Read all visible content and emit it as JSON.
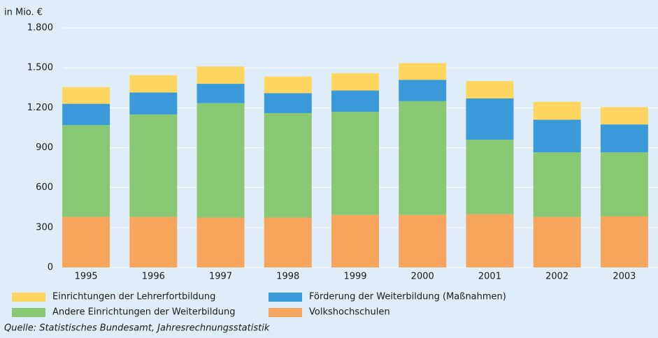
{
  "chart_data": {
    "type": "stacked_bar",
    "y_axis_label": "in Mio. €",
    "categories": [
      "1995",
      "1996",
      "1997",
      "1998",
      "1999",
      "2000",
      "2001",
      "2002",
      "2003"
    ],
    "series": [
      {
        "name": "Volkshochschulen",
        "color": "#f6a55c",
        "values": [
          380,
          380,
          375,
          375,
          395,
          395,
          400,
          380,
          385
        ]
      },
      {
        "name": "Andere Einrichtungen der Weiterbildung",
        "color": "#88c873",
        "values": [
          690,
          770,
          860,
          785,
          775,
          855,
          560,
          485,
          480
        ]
      },
      {
        "name": "Förderung der Weiterbildung (Maßnahmen)",
        "color": "#3a9ad9",
        "values": [
          160,
          165,
          145,
          150,
          160,
          160,
          310,
          245,
          210
        ]
      },
      {
        "name": "Einrichtungen der Lehrerfortbildung",
        "color": "#fdd55f",
        "values": [
          125,
          130,
          130,
          125,
          130,
          125,
          130,
          135,
          130
        ]
      }
    ],
    "ylim": [
      0,
      1800
    ],
    "yticks": [
      0,
      300,
      600,
      900,
      {
        "value": 1200,
        "label": "1.200"
      },
      {
        "value": 1500,
        "label": "1.500"
      },
      {
        "value": 1800,
        "label": "1.800"
      }
    ],
    "grid": true,
    "source": "Quelle: Statistisches Bundesamt, Jahresrechnungsstatistik"
  }
}
